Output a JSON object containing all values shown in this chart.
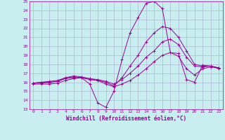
{
  "xlabel": "Windchill (Refroidissement éolien,°C)",
  "bg_color": "#c8eef0",
  "grid_color": "#aaaacc",
  "line_color": "#990099",
  "ylim": [
    13,
    25
  ],
  "xlim": [
    -0.5,
    23.5
  ],
  "yticks": [
    13,
    14,
    15,
    16,
    17,
    18,
    19,
    20,
    21,
    22,
    23,
    24,
    25
  ],
  "xticks": [
    0,
    1,
    2,
    3,
    4,
    5,
    6,
    7,
    8,
    9,
    10,
    11,
    12,
    13,
    14,
    15,
    16,
    17,
    18,
    19,
    20,
    21,
    22,
    23
  ],
  "series": [
    [
      15.8,
      15.8,
      15.8,
      15.9,
      16.2,
      16.4,
      16.5,
      15.8,
      13.7,
      13.2,
      15.0,
      18.5,
      21.5,
      23.2,
      24.8,
      25.0,
      24.2,
      19.3,
      19.2,
      16.3,
      16.0,
      17.9,
      17.8,
      17.5
    ],
    [
      15.9,
      16.0,
      16.0,
      16.1,
      16.4,
      16.5,
      16.5,
      16.3,
      16.2,
      15.8,
      15.5,
      15.8,
      16.2,
      16.8,
      17.5,
      18.3,
      19.0,
      19.3,
      18.9,
      17.5,
      16.8,
      17.5,
      17.7,
      17.6
    ],
    [
      15.9,
      15.9,
      16.0,
      16.1,
      16.5,
      16.6,
      16.5,
      16.4,
      16.3,
      16.1,
      15.8,
      16.3,
      17.0,
      17.8,
      18.8,
      19.5,
      20.5,
      20.8,
      20.2,
      18.8,
      17.8,
      17.7,
      17.8,
      17.6
    ],
    [
      15.9,
      16.0,
      16.1,
      16.2,
      16.5,
      16.7,
      16.6,
      16.4,
      16.2,
      16.0,
      15.6,
      16.5,
      17.8,
      19.0,
      20.5,
      21.5,
      22.2,
      22.0,
      21.0,
      19.5,
      18.0,
      17.8,
      17.8,
      17.6
    ]
  ]
}
